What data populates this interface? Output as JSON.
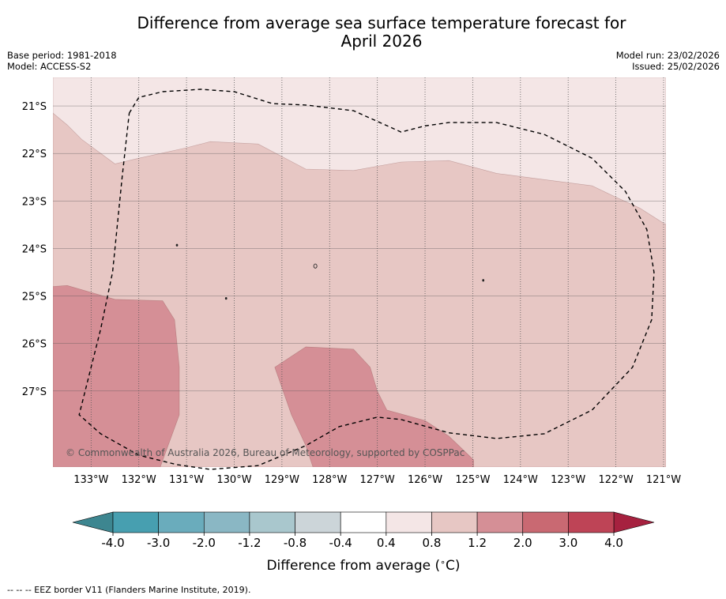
{
  "title_line1": "Difference from average sea surface temperature forecast for",
  "title_line2": "April 2026",
  "header_left": {
    "base_period": "Base period: 1981-2018",
    "model": "Model: ACCESS-S2"
  },
  "header_right": {
    "model_run": "Model run: 23/02/2026",
    "issued": "Issued: 25/02/2026"
  },
  "copyright": "© Commonwealth of Australia 2026, Bureau of Meteorology, supported by COSPPac",
  "footnote": "-- -- -- EEZ border V11 (Flanders Marine Institute, 2019).",
  "colors": {
    "band_04_08": "#f4e6e6",
    "band_08_12": "#e7c7c4",
    "band_12_20": "#d58f96",
    "eez_line": "#000000",
    "grid_line": "#555555",
    "coast": "#222222"
  },
  "chart_data": {
    "type": "heatmap",
    "title": "Difference from average sea surface temperature forecast for April 2026",
    "xlim": [
      -133.8,
      -120.95
    ],
    "ylim": [
      -28.6,
      -20.4
    ],
    "x_ticks": [
      -133,
      -132,
      -131,
      -130,
      -129,
      -128,
      -127,
      -126,
      -125,
      -124,
      -123,
      -122,
      -121
    ],
    "x_tick_labels": [
      "133°W",
      "132°W",
      "131°W",
      "130°W",
      "129°W",
      "128°W",
      "127°W",
      "126°W",
      "125°W",
      "124°W",
      "123°W",
      "122°W",
      "121°W"
    ],
    "y_ticks": [
      -21,
      -22,
      -23,
      -24,
      -25,
      -26,
      -27
    ],
    "y_tick_labels": [
      "21°S",
      "22°S",
      "23°S",
      "24°S",
      "25°S",
      "26°S",
      "27°S"
    ],
    "regions": [
      {
        "name": "0.4 to 0.8",
        "color_key": "band_04_08",
        "polygon": [
          [
            -133.8,
            -20.4
          ],
          [
            -120.95,
            -20.4
          ],
          [
            -120.95,
            -28.6
          ],
          [
            -133.8,
            -28.6
          ]
        ]
      },
      {
        "name": "0.8 to 1.2",
        "color_key": "band_08_12",
        "polygon": [
          [
            -133.8,
            -21.15
          ],
          [
            -133.5,
            -21.4
          ],
          [
            -133.2,
            -21.7
          ],
          [
            -132.5,
            -22.22
          ],
          [
            -132.0,
            -22.1
          ],
          [
            -131.0,
            -21.88
          ],
          [
            -130.5,
            -21.75
          ],
          [
            -129.5,
            -21.8
          ],
          [
            -128.5,
            -22.33
          ],
          [
            -127.5,
            -22.36
          ],
          [
            -126.5,
            -22.18
          ],
          [
            -125.5,
            -22.15
          ],
          [
            -124.5,
            -22.42
          ],
          [
            -123.5,
            -22.55
          ],
          [
            -122.5,
            -22.68
          ],
          [
            -122.0,
            -22.92
          ],
          [
            -121.5,
            -23.15
          ],
          [
            -120.95,
            -23.5
          ],
          [
            -120.95,
            -28.6
          ],
          [
            -133.8,
            -28.6
          ]
        ]
      },
      {
        "name": "1.2 to 2.0 (west)",
        "color_key": "band_12_20",
        "polygon": [
          [
            -133.8,
            -24.8
          ],
          [
            -133.5,
            -24.78
          ],
          [
            -132.5,
            -25.07
          ],
          [
            -131.5,
            -25.1
          ],
          [
            -131.25,
            -25.5
          ],
          [
            -131.15,
            -26.5
          ],
          [
            -131.15,
            -27.5
          ],
          [
            -131.55,
            -28.6
          ],
          [
            -133.8,
            -28.6
          ]
        ]
      },
      {
        "name": "1.2 to 2.0 (central)",
        "color_key": "band_12_20",
        "polygon": [
          [
            -129.15,
            -26.5
          ],
          [
            -128.5,
            -26.07
          ],
          [
            -127.5,
            -26.12
          ],
          [
            -127.15,
            -26.5
          ],
          [
            -127.0,
            -27.0
          ],
          [
            -126.8,
            -27.4
          ],
          [
            -126.0,
            -27.62
          ],
          [
            -125.5,
            -27.95
          ],
          [
            -124.98,
            -28.45
          ],
          [
            -124.98,
            -28.6
          ],
          [
            -128.35,
            -28.6
          ],
          [
            -128.5,
            -28.15
          ],
          [
            -128.8,
            -27.5
          ]
        ]
      }
    ],
    "eez_border": [
      [
        -132.2,
        -21.15
      ],
      [
        -132.0,
        -20.82
      ],
      [
        -131.5,
        -20.7
      ],
      [
        -130.7,
        -20.65
      ],
      [
        -130.0,
        -20.7
      ],
      [
        -129.2,
        -20.95
      ],
      [
        -128.5,
        -20.98
      ],
      [
        -127.5,
        -21.1
      ],
      [
        -126.5,
        -21.55
      ],
      [
        -126.0,
        -21.42
      ],
      [
        -125.5,
        -21.35
      ],
      [
        -124.5,
        -21.35
      ],
      [
        -123.5,
        -21.6
      ],
      [
        -122.5,
        -22.1
      ],
      [
        -121.8,
        -22.8
      ],
      [
        -121.35,
        -23.6
      ],
      [
        -121.2,
        -24.5
      ],
      [
        -121.25,
        -25.5
      ],
      [
        -121.65,
        -26.5
      ],
      [
        -122.5,
        -27.4
      ],
      [
        -123.5,
        -27.9
      ],
      [
        -124.5,
        -28.0
      ],
      [
        -125.5,
        -27.88
      ],
      [
        -126.5,
        -27.6
      ],
      [
        -127.0,
        -27.55
      ],
      [
        -127.8,
        -27.75
      ],
      [
        -128.5,
        -28.15
      ],
      [
        -129.5,
        -28.57
      ],
      [
        -130.5,
        -28.65
      ],
      [
        -131.2,
        -28.55
      ],
      [
        -132.0,
        -28.35
      ],
      [
        -132.8,
        -27.9
      ],
      [
        -133.25,
        -27.5
      ],
      [
        -133.05,
        -26.7
      ],
      [
        -132.8,
        -25.7
      ],
      [
        -132.55,
        -24.5
      ],
      [
        -132.35,
        -22.5
      ],
      [
        -132.2,
        -21.15
      ]
    ],
    "islands": [
      {
        "name": "island-a",
        "lon": -131.2,
        "lat": -23.93
      },
      {
        "name": "island-b",
        "lon": -128.3,
        "lat": -24.37
      },
      {
        "name": "island-c",
        "lon": -130.17,
        "lat": -25.05
      },
      {
        "name": "island-d",
        "lon": -124.78,
        "lat": -24.67
      }
    ],
    "colorbar": {
      "label": "Difference from average ($^\\circ$C)",
      "label_text": "Difference from average (",
      "label_unit": "C)",
      "boundaries": [
        -4.0,
        -3.0,
        -2.0,
        -1.2,
        -0.8,
        -0.4,
        0.4,
        0.8,
        1.2,
        2.0,
        3.0,
        4.0
      ],
      "tick_labels": [
        "-4.0",
        "-3.0",
        "-2.0",
        "-1.2",
        "-0.8",
        "-0.4",
        "0.4",
        "0.8",
        "1.2",
        "2.0",
        "3.0",
        "4.0"
      ],
      "colors": [
        "#479fb0",
        "#6aacbc",
        "#8ab7c4",
        "#a9c7cd",
        "#ccd5d9",
        "#ffffff",
        "#f4e6e6",
        "#e7c7c4",
        "#d58f96",
        "#c96972",
        "#be4456"
      ],
      "extend_min_color": "#3d8690",
      "extend_max_color": "#a6213f"
    }
  }
}
